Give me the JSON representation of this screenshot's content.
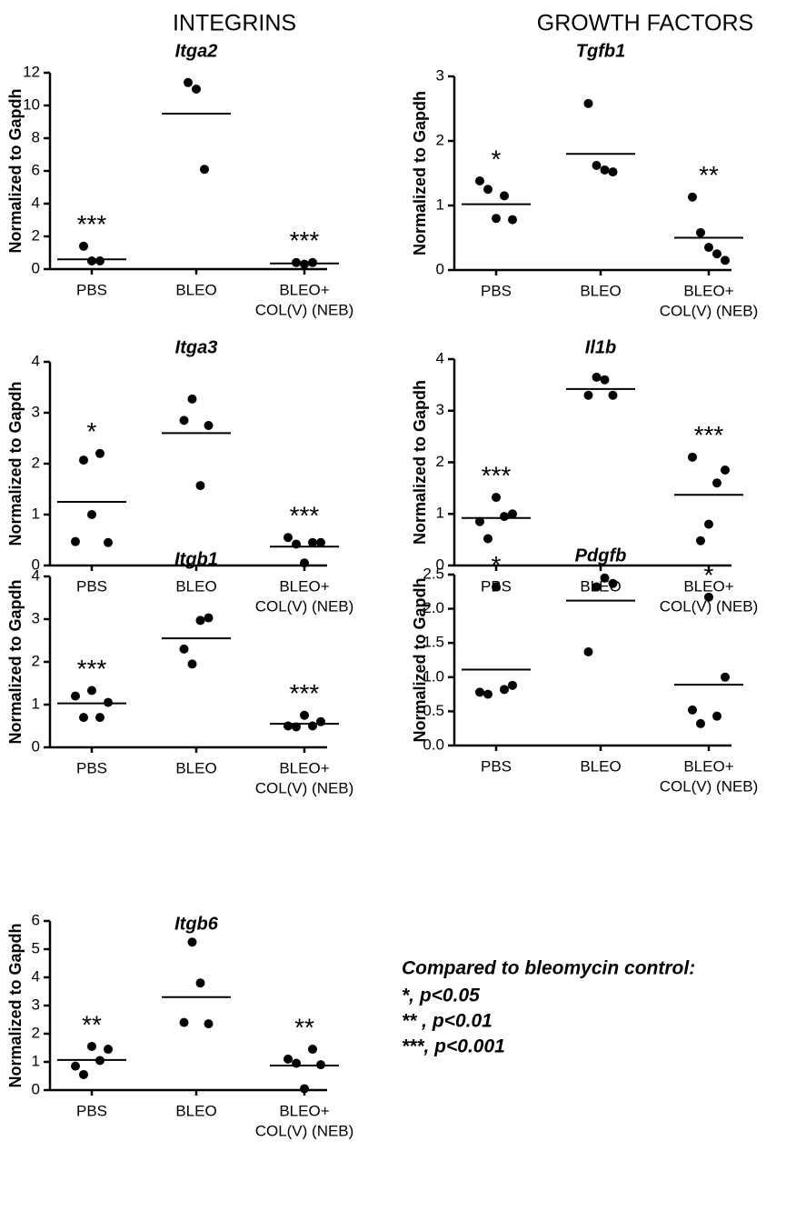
{
  "column_titles": [
    "INTEGRINS",
    "GROWTH FACTORS"
  ],
  "note": [
    "Compared to bleomycin control:",
    "*, p<0.05",
    "** , p<0.01",
    "***, p<0.001"
  ],
  "chart_data": [
    {
      "type": "dot",
      "title": "Itga2",
      "y_label": "Normalized to Gapdh",
      "categories": [
        [
          "PBS"
        ],
        [
          "BLEO"
        ],
        [
          "BLEO+",
          "COL(V) (NEB)"
        ]
      ],
      "points": [
        [
          1.4,
          0.5,
          0.5
        ],
        [
          11.4,
          11.0,
          6.1
        ],
        [
          0.4,
          0.3,
          0.4
        ]
      ],
      "means": [
        0.6,
        9.5,
        0.35
      ],
      "significance": [
        "***",
        null,
        "***"
      ],
      "color": "#000000",
      "ylim": [
        0,
        12
      ],
      "yticks": [
        0,
        2,
        4,
        6,
        8,
        10,
        12
      ]
    },
    {
      "type": "dot",
      "title": "Tgfb1",
      "y_label": "Normalized to Gapdh",
      "categories": [
        [
          "PBS"
        ],
        [
          "BLEO"
        ],
        [
          "BLEO+",
          "COL(V) (NEB)"
        ]
      ],
      "points": [
        [
          1.38,
          1.25,
          0.8,
          1.15,
          0.78
        ],
        [
          2.58,
          1.62,
          1.55,
          1.52
        ],
        [
          1.13,
          0.58,
          0.35,
          0.25,
          0.15
        ]
      ],
      "means": [
        1.02,
        1.8,
        0.5
      ],
      "significance": [
        "*",
        null,
        "**"
      ],
      "color": "#000000",
      "ylim": [
        0,
        3
      ],
      "yticks": [
        0,
        1,
        2,
        3
      ]
    },
    {
      "type": "dot",
      "title": "Itga3",
      "y_label": "Normalized to Gapdh",
      "categories": [
        [
          "PBS"
        ],
        [
          "BLEO"
        ],
        [
          "BLEO+",
          "COL(V) (NEB)"
        ]
      ],
      "points": [
        [
          0.47,
          2.07,
          1.0,
          2.2,
          0.45
        ],
        [
          2.85,
          3.27,
          1.57,
          2.75
        ],
        [
          0.55,
          0.42,
          0.05,
          0.45,
          0.45
        ]
      ],
      "means": [
        1.25,
        2.6,
        0.37
      ],
      "significance": [
        "*",
        null,
        "***"
      ],
      "color": "#000000",
      "ylim": [
        0,
        4
      ],
      "yticks": [
        0,
        1,
        2,
        3,
        4
      ]
    },
    {
      "type": "dot",
      "title": "Il1b",
      "y_label": "Normalized to Gapdh",
      "categories": [
        [
          "PBS"
        ],
        [
          "BLEO"
        ],
        [
          "BLEO+",
          "COL(V) (NEB)"
        ]
      ],
      "points": [
        [
          0.85,
          0.52,
          1.32,
          0.95,
          1.0
        ],
        [
          3.3,
          3.65,
          3.6,
          3.3
        ],
        [
          2.1,
          0.48,
          0.8,
          1.6,
          1.85
        ]
      ],
      "means": [
        0.92,
        3.42,
        1.37
      ],
      "significance": [
        "***",
        null,
        "***"
      ],
      "color": "#000000",
      "ylim": [
        0,
        4
      ],
      "yticks": [
        0,
        1,
        2,
        3,
        4
      ]
    },
    {
      "type": "dot",
      "title": "Itgb1",
      "y_label": "Normalized to Gapdh",
      "categories": [
        [
          "PBS"
        ],
        [
          "BLEO"
        ],
        [
          "BLEO+",
          "COL(V) (NEB)"
        ]
      ],
      "points": [
        [
          1.2,
          0.7,
          1.33,
          0.7,
          1.05
        ],
        [
          2.3,
          1.95,
          2.97,
          3.03
        ],
        [
          0.5,
          0.48,
          0.75,
          0.5,
          0.6
        ]
      ],
      "means": [
        1.03,
        2.55,
        0.55
      ],
      "significance": [
        "***",
        null,
        "***"
      ],
      "color": "#000000",
      "ylim": [
        0,
        4
      ],
      "yticks": [
        0,
        1,
        2,
        3,
        4
      ]
    },
    {
      "type": "dot",
      "title": "Pdgfb",
      "y_label": "Normalized to Gapdh",
      "categories": [
        [
          "PBS"
        ],
        [
          "BLEO"
        ],
        [
          "BLEO+",
          "COL(V) (NEB)"
        ]
      ],
      "points": [
        [
          0.78,
          0.75,
          2.32,
          0.82,
          0.88
        ],
        [
          1.37,
          2.32,
          2.45,
          2.37
        ],
        [
          0.52,
          0.32,
          2.17,
          0.43,
          1.0
        ]
      ],
      "means": [
        1.11,
        2.12,
        0.89
      ],
      "significance": [
        "*",
        null,
        "*"
      ],
      "color": "#000000",
      "ylim": [
        0,
        2.5
      ],
      "yticks": [
        {
          "value": 0,
          "label": "0.0"
        },
        0.5,
        {
          "value": 1,
          "label": "1.0"
        },
        1.5,
        {
          "value": 2,
          "label": "2.0"
        },
        2.5
      ]
    },
    {
      "type": "dot",
      "title": "Itgb6",
      "y_label": "Normalized to Gapdh",
      "categories": [
        [
          "PBS"
        ],
        [
          "BLEO"
        ],
        [
          "BLEO+",
          "COL(V) (NEB)"
        ]
      ],
      "points": [
        [
          0.85,
          0.55,
          1.55,
          1.05,
          1.45
        ],
        [
          2.4,
          5.25,
          3.8,
          2.35
        ],
        [
          1.1,
          0.95,
          0.05,
          1.45,
          0.9
        ]
      ],
      "means": [
        1.07,
        3.3,
        0.87
      ],
      "significance": [
        "**",
        null,
        "**"
      ],
      "color": "#000000",
      "ylim": [
        0,
        6
      ],
      "yticks": [
        0,
        1,
        2,
        3,
        4,
        5,
        6
      ]
    }
  ]
}
